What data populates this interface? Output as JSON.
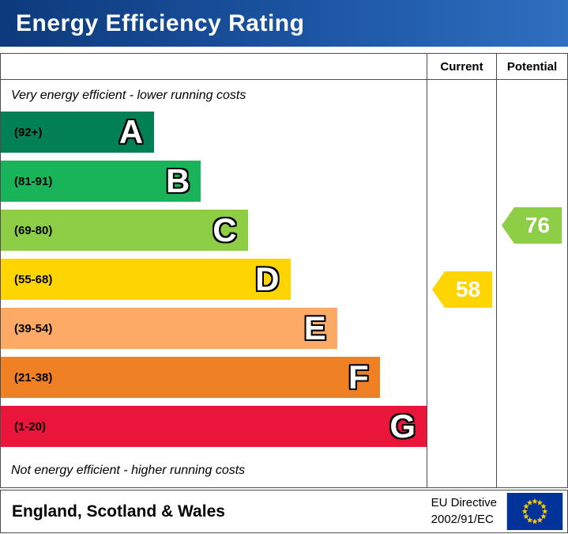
{
  "header": {
    "title": "Energy Efficiency Rating"
  },
  "table": {
    "current_label": "Current",
    "potential_label": "Potential"
  },
  "notes": {
    "top": "Very energy efficient - lower running costs",
    "bottom": "Not energy efficient - higher running costs"
  },
  "bands": [
    {
      "letter": "A",
      "range_label": "(92+)",
      "min": 92,
      "max": 100,
      "color": "#008054",
      "width_pct": 36
    },
    {
      "letter": "B",
      "range_label": "(81-91)",
      "min": 81,
      "max": 91,
      "color": "#19b459",
      "width_pct": 47
    },
    {
      "letter": "C",
      "range_label": "(69-80)",
      "min": 69,
      "max": 80,
      "color": "#8dce46",
      "width_pct": 58
    },
    {
      "letter": "D",
      "range_label": "(55-68)",
      "min": 55,
      "max": 68,
      "color": "#ffd500",
      "width_pct": 68
    },
    {
      "letter": "E",
      "range_label": "(39-54)",
      "min": 39,
      "max": 54,
      "color": "#fcaa65",
      "width_pct": 79
    },
    {
      "letter": "F",
      "range_label": "(21-38)",
      "min": 21,
      "max": 38,
      "color": "#ef8023",
      "width_pct": 89
    },
    {
      "letter": "G",
      "range_label": "(1-20)",
      "min": 1,
      "max": 20,
      "color": "#e9153b",
      "width_pct": 100
    }
  ],
  "ratings": {
    "current": {
      "value": 58,
      "color": "#ffd500"
    },
    "potential": {
      "value": 76,
      "color": "#8dce46"
    }
  },
  "footer": {
    "region": "England, Scotland & Wales",
    "directive_line1": "EU Directive",
    "directive_line2": "2002/91/EC",
    "flag_colors": {
      "background": "#003399",
      "stars": "#ffcc00"
    }
  },
  "chart_data": {
    "type": "bar",
    "title": "Energy Efficiency Rating",
    "categories": [
      "A",
      "B",
      "C",
      "D",
      "E",
      "F",
      "G"
    ],
    "ranges": [
      "92+",
      "81-91",
      "69-80",
      "55-68",
      "39-54",
      "21-38",
      "1-20"
    ],
    "bar_lengths_pct": [
      36,
      47,
      58,
      68,
      79,
      89,
      100
    ],
    "colors": [
      "#008054",
      "#19b459",
      "#8dce46",
      "#ffd500",
      "#fcaa65",
      "#ef8023",
      "#e9153b"
    ],
    "markers": [
      {
        "name": "Current",
        "value": 58,
        "band": "D",
        "color": "#ffd500"
      },
      {
        "name": "Potential",
        "value": 76,
        "band": "C",
        "color": "#8dce46"
      }
    ],
    "top_note": "Very energy efficient - lower running costs",
    "bottom_note": "Not energy efficient - higher running costs",
    "legend_position": "none",
    "grid": false
  }
}
